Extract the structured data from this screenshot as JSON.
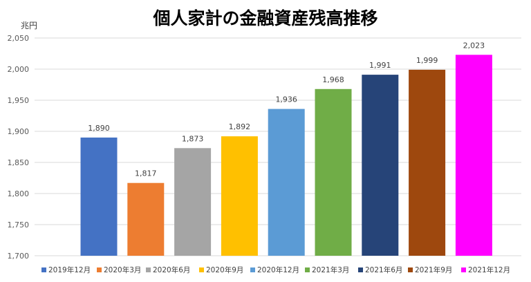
{
  "chart_data": {
    "type": "bar",
    "title": "個人家計の金融資産残高推移",
    "ylabel": "兆円",
    "xlabel": "",
    "ylim": [
      1700,
      2050
    ],
    "yticks": [
      1700,
      1750,
      1800,
      1850,
      1900,
      1950,
      2000,
      2050
    ],
    "grid": true,
    "legend_position": "bottom",
    "categories": [
      "2019年12月",
      "2020年3月",
      "2020年6月",
      "2020年9月",
      "2020年12月",
      "2021年3月",
      "2021年6月",
      "2021年9月",
      "2021年12月"
    ],
    "values": [
      1890,
      1817,
      1873,
      1892,
      1936,
      1968,
      1991,
      1999,
      2023
    ],
    "colors": [
      "#4472c4",
      "#ed7d31",
      "#a5a5a5",
      "#ffc000",
      "#5b9bd5",
      "#70ad47",
      "#264478",
      "#9e480e",
      "#ff00ff"
    ]
  }
}
